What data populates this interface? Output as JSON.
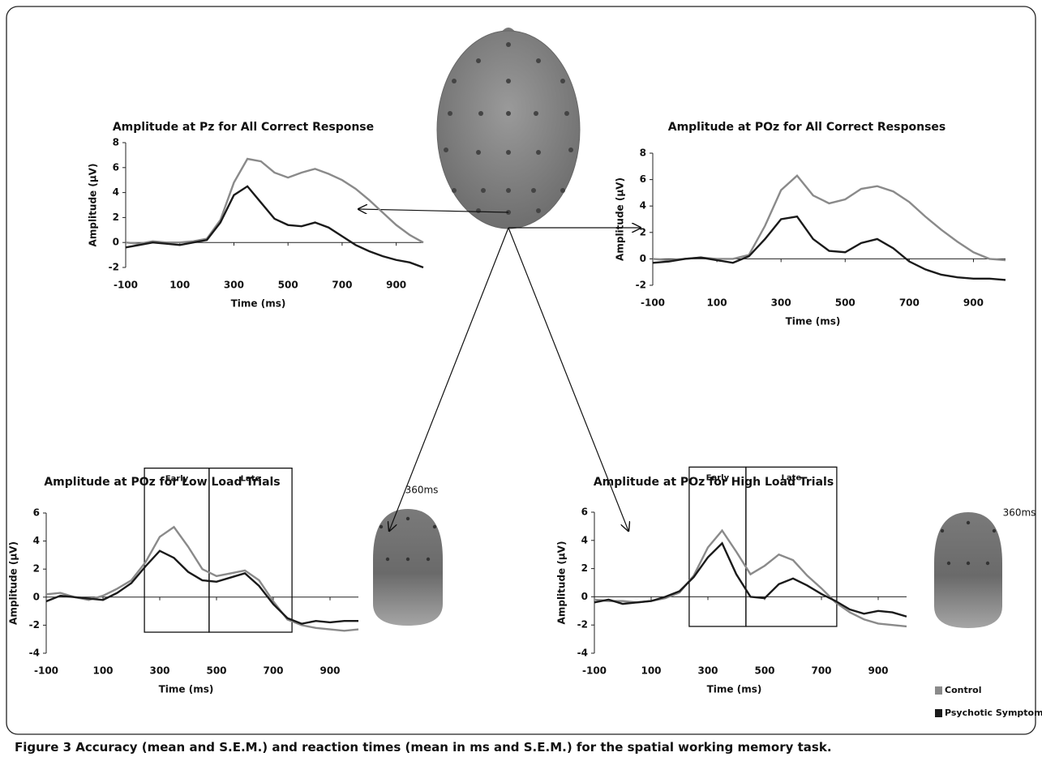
{
  "chart_data": [
    {
      "type": "line",
      "title": "Amplitude at Pz for All Correct Response",
      "x_label": "Time (ms)",
      "y_label": "Amplitude (µV)",
      "x": [
        -100,
        -50,
        0,
        50,
        100,
        150,
        200,
        250,
        300,
        350,
        400,
        450,
        500,
        550,
        600,
        650,
        700,
        750,
        800,
        850,
        900,
        950,
        1000
      ],
      "xlim": [
        -100,
        1000
      ],
      "xticks": [
        -100,
        100,
        300,
        500,
        700,
        900
      ],
      "ylim": [
        -2,
        8
      ],
      "yticks": [
        -2,
        0,
        2,
        4,
        6,
        8
      ],
      "series": [
        {
          "color": "#8a8a8a",
          "values": [
            0,
            -0.1,
            0.1,
            0,
            0,
            0.1,
            0.3,
            1.8,
            4.8,
            6.7,
            6.5,
            5.6,
            5.2,
            5.6,
            5.9,
            5.5,
            5.0,
            4.3,
            3.4,
            2.4,
            1.4,
            0.6,
            0
          ]
        },
        {
          "color": "#1a1a1a",
          "values": [
            -0.4,
            -0.2,
            0,
            -0.1,
            -0.2,
            0,
            0.2,
            1.6,
            3.8,
            4.5,
            3.2,
            1.9,
            1.4,
            1.3,
            1.6,
            1.2,
            0.5,
            -0.2,
            -0.7,
            -1.1,
            -1.4,
            -1.6,
            -2.0
          ]
        }
      ]
    },
    {
      "type": "line",
      "title": "Amplitude at POz for All Correct Responses",
      "x_label": "Time (ms)",
      "y_label": "Amplitude (µV)",
      "x": [
        -100,
        -50,
        0,
        50,
        100,
        150,
        200,
        250,
        300,
        350,
        400,
        450,
        500,
        550,
        600,
        650,
        700,
        750,
        800,
        850,
        900,
        950,
        1000
      ],
      "xlim": [
        -100,
        1000
      ],
      "xticks": [
        -100,
        100,
        300,
        500,
        700,
        900
      ],
      "ylim": [
        -2,
        8
      ],
      "yticks": [
        -2,
        0,
        2,
        4,
        6,
        8
      ],
      "series": [
        {
          "color": "#8a8a8a",
          "values": [
            0,
            -0.1,
            0,
            0.1,
            0,
            0,
            0.3,
            2.5,
            5.2,
            6.3,
            4.8,
            4.2,
            4.5,
            5.3,
            5.5,
            5.1,
            4.3,
            3.2,
            2.2,
            1.3,
            0.5,
            0,
            -0.1
          ]
        },
        {
          "color": "#1a1a1a",
          "values": [
            -0.3,
            -0.2,
            0,
            0.1,
            -0.1,
            -0.3,
            0.2,
            1.5,
            3.0,
            3.2,
            1.5,
            0.6,
            0.5,
            1.2,
            1.5,
            0.8,
            -0.2,
            -0.8,
            -1.2,
            -1.4,
            -1.5,
            -1.5,
            -1.6
          ]
        }
      ]
    },
    {
      "type": "line",
      "title": "Amplitude at POz for Low Load Trials",
      "x_label": "Time (ms)",
      "y_label": "Amplitude (µV)",
      "annotation": "360ms",
      "x": [
        -100,
        -50,
        0,
        50,
        100,
        150,
        200,
        250,
        300,
        350,
        400,
        450,
        500,
        550,
        600,
        650,
        700,
        750,
        800,
        850,
        900,
        950,
        1000
      ],
      "xlim": [
        -100,
        1000
      ],
      "xticks": [
        -100,
        100,
        300,
        500,
        700,
        900
      ],
      "ylim": [
        -4,
        6
      ],
      "yticks": [
        -4,
        -2,
        0,
        2,
        4,
        6
      ],
      "windows": [
        {
          "label": "Early",
          "x0": 246,
          "x1": 474,
          "y0": -2.5,
          "y1": 9.2
        },
        {
          "label": "Late",
          "x0": 474,
          "x1": 766,
          "y0": -2.5,
          "y1": 9.2
        }
      ],
      "series": [
        {
          "color": "#8a8a8a",
          "values": [
            0.2,
            0.3,
            0,
            -0.2,
            0.1,
            0.6,
            1.2,
            2.5,
            4.3,
            5.0,
            3.6,
            2.0,
            1.5,
            1.7,
            1.9,
            1.2,
            -0.3,
            -1.6,
            -2.0,
            -2.2,
            -2.3,
            -2.4,
            -2.3
          ]
        },
        {
          "color": "#1a1a1a",
          "values": [
            -0.3,
            0.1,
            0,
            -0.1,
            -0.2,
            0.3,
            1.0,
            2.2,
            3.3,
            2.8,
            1.8,
            1.2,
            1.1,
            1.4,
            1.7,
            0.8,
            -0.5,
            -1.5,
            -1.9,
            -1.7,
            -1.8,
            -1.7,
            -1.7
          ]
        }
      ]
    },
    {
      "type": "line",
      "title": "Amplitude at POz for High Load Trials",
      "x_label": "Time (ms)",
      "y_label": "Amplitude (µV)",
      "annotation": "360ms",
      "x": [
        -100,
        -50,
        0,
        50,
        100,
        150,
        200,
        250,
        300,
        350,
        400,
        450,
        500,
        550,
        600,
        650,
        700,
        750,
        800,
        850,
        900,
        950,
        1000
      ],
      "xlim": [
        -100,
        1000
      ],
      "xticks": [
        -100,
        100,
        300,
        500,
        700,
        900
      ],
      "ylim": [
        -4,
        6
      ],
      "yticks": [
        -4,
        -2,
        0,
        2,
        4,
        6
      ],
      "windows": [
        {
          "label": "Early",
          "x0": 234,
          "x1": 434,
          "y0": -2.1,
          "y1": 9.2
        },
        {
          "label": "Late",
          "x0": 434,
          "x1": 754,
          "y0": -2.1,
          "y1": 9.2
        }
      ],
      "series": [
        {
          "name": "Control",
          "color": "#8a8a8a",
          "values": [
            -0.2,
            -0.3,
            -0.3,
            -0.4,
            -0.3,
            -0.1,
            0.3,
            1.5,
            3.5,
            4.7,
            3.2,
            1.6,
            2.2,
            3.0,
            2.6,
            1.5,
            0.6,
            -0.4,
            -1.1,
            -1.6,
            -1.9,
            -2.0,
            -2.1
          ]
        },
        {
          "name": "Psychotic Symptoms",
          "color": "#1a1a1a",
          "values": [
            -0.4,
            -0.2,
            -0.5,
            -0.4,
            -0.3,
            0,
            0.4,
            1.4,
            2.8,
            3.8,
            1.6,
            0,
            -0.1,
            0.9,
            1.3,
            0.8,
            0.2,
            -0.3,
            -0.9,
            -1.2,
            -1.0,
            -1.1,
            -1.4
          ]
        }
      ]
    }
  ],
  "caption": {
    "label": "Figure 3",
    "text": "Accuracy (mean and S.E.M.) and reaction times (mean in ms and S.E.M.) for the spatial working memory task."
  }
}
